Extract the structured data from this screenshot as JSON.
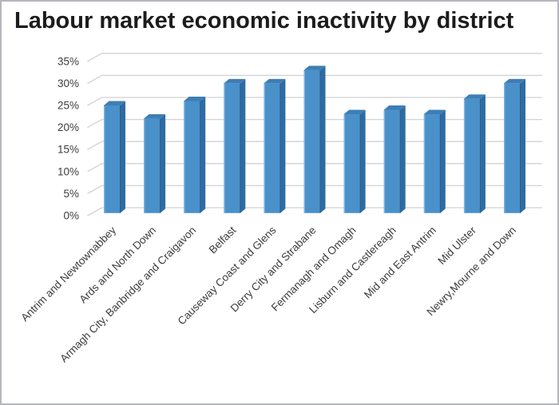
{
  "window": {
    "title": "Labour market economic inactivity by district"
  },
  "chart_data": {
    "type": "bar",
    "style": "3d-column",
    "title": "Labour market economic inactivity by district",
    "categories": [
      "Antrim and Newtownabbey",
      "Ards and North Down",
      "Armagh City, Banbridge and Craigavon",
      "Belfast",
      "Causeway Coast and Glens",
      "Derry City and Strabane",
      "Fermanagh and Omagh",
      "Lisburn and Castlereagh",
      "Mid and East Antrim",
      "Mid Ulster",
      "Newry,Mourne and Down"
    ],
    "values": [
      25,
      22,
      26,
      30,
      30,
      33,
      23,
      24,
      23,
      26.5,
      30
    ],
    "unit": "%",
    "xlabel": "",
    "ylabel": "",
    "ylim": [
      0,
      35
    ],
    "ytick_step": 5,
    "ytick_labels": [
      "0%",
      "5%",
      "10%",
      "15%",
      "20%",
      "25%",
      "30%",
      "35%"
    ],
    "grid": true,
    "legend": false,
    "colors": {
      "bar_front": "#4a90c9",
      "bar_side": "#2f6ba3",
      "bar_top": "#3e7eb4",
      "bar_left_highlight": "#7db3e0",
      "bar_right_edge": "#27618f",
      "gridline": "#d2d2d2",
      "axis_label": "#3d3d3d",
      "title_color": "#1c1c1c",
      "background": "#ffffff",
      "frame_border": "#b5b5bd"
    }
  }
}
